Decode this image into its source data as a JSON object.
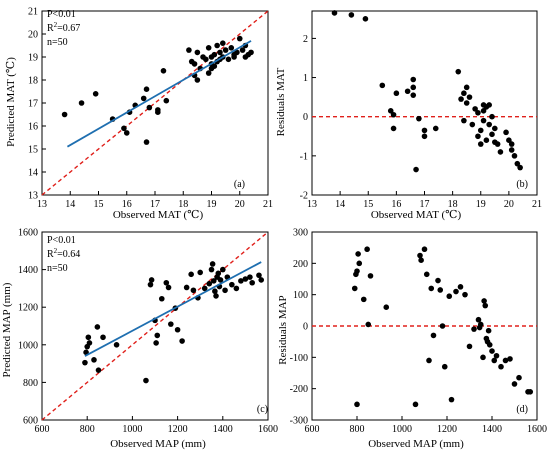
{
  "chart_data": [
    {
      "type": "scatter",
      "panel_label": "(a)",
      "xlabel": "Observed MAT (℃)",
      "ylabel": "Predicted MAT (℃)",
      "xlim": [
        13,
        21
      ],
      "ylim": [
        13,
        21
      ],
      "xticks": [
        "13",
        "14",
        "15",
        "16",
        "17",
        "18",
        "19",
        "20",
        "21"
      ],
      "yticks": [
        "13",
        "14",
        "15",
        "16",
        "17",
        "18",
        "19",
        "20",
        "21"
      ],
      "stats": {
        "p": "P<0.01",
        "r2_prefix": "R",
        "r2_sup": "2",
        "r2_value": "=0.67",
        "n": "n=50"
      },
      "one_to_one_line": {
        "style": "dashed",
        "color": "#e0201b",
        "from": [
          13,
          13
        ],
        "to": [
          21,
          21
        ]
      },
      "fit_line": {
        "color": "#1f6fb0",
        "from": [
          13.9,
          15.1
        ],
        "to": [
          20.4,
          19.7
        ]
      },
      "points": [
        [
          13.8,
          16.5
        ],
        [
          14.4,
          17.0
        ],
        [
          14.9,
          17.4
        ],
        [
          15.5,
          16.3
        ],
        [
          15.9,
          15.9
        ],
        [
          16.0,
          15.7
        ],
        [
          16.1,
          16.6
        ],
        [
          16.3,
          16.9
        ],
        [
          16.6,
          17.2
        ],
        [
          16.7,
          17.6
        ],
        [
          16.7,
          15.3
        ],
        [
          16.8,
          16.8
        ],
        [
          17.1,
          16.7
        ],
        [
          17.1,
          16.6
        ],
        [
          17.4,
          17.1
        ],
        [
          18.2,
          19.3
        ],
        [
          18.3,
          18.8
        ],
        [
          18.4,
          18.2
        ],
        [
          18.4,
          18.7
        ],
        [
          18.5,
          19.2
        ],
        [
          18.6,
          18.5
        ],
        [
          18.7,
          19.0
        ],
        [
          18.8,
          18.9
        ],
        [
          18.9,
          19.4
        ],
        [
          18.9,
          18.3
        ],
        [
          19.0,
          18.7
        ],
        [
          19.0,
          18.5
        ],
        [
          19.1,
          19.1
        ],
        [
          19.1,
          18.6
        ],
        [
          19.2,
          19.5
        ],
        [
          19.2,
          18.8
        ],
        [
          19.3,
          18.9
        ],
        [
          19.3,
          19.2
        ],
        [
          19.4,
          19.6
        ],
        [
          19.4,
          19.0
        ],
        [
          19.5,
          19.3
        ],
        [
          19.6,
          18.9
        ],
        [
          19.7,
          19.4
        ],
        [
          19.8,
          19.1
        ],
        [
          19.9,
          19.2
        ],
        [
          20.0,
          19.8
        ],
        [
          20.1,
          19.3
        ],
        [
          20.2,
          19.5
        ],
        [
          20.3,
          19.1
        ],
        [
          20.4,
          19.2
        ],
        [
          18.5,
          18.0
        ],
        [
          19.0,
          19.0
        ],
        [
          19.8,
          19.0
        ],
        [
          20.2,
          19.0
        ],
        [
          17.3,
          18.4
        ]
      ]
    },
    {
      "type": "scatter",
      "panel_label": "(b)",
      "xlabel": "Observed MAT (℃)",
      "ylabel": "Residuals MAT",
      "xlim": [
        13,
        21
      ],
      "ylim": [
        -2,
        2.7
      ],
      "xticks": [
        "13",
        "14",
        "15",
        "16",
        "17",
        "18",
        "19",
        "20",
        "21"
      ],
      "yticks": [
        "-2",
        "-1",
        "0",
        "1",
        "2"
      ],
      "zero_line": {
        "style": "dashed",
        "color": "#e0201b",
        "y": 0
      },
      "points": [
        [
          13.8,
          2.65
        ],
        [
          14.4,
          2.6
        ],
        [
          14.9,
          2.5
        ],
        [
          15.5,
          0.8
        ],
        [
          15.8,
          0.15
        ],
        [
          15.9,
          0.05
        ],
        [
          15.9,
          -0.3
        ],
        [
          16.0,
          0.6
        ],
        [
          16.4,
          0.65
        ],
        [
          16.6,
          0.95
        ],
        [
          16.6,
          0.75
        ],
        [
          16.6,
          0.55
        ],
        [
          16.7,
          -1.35
        ],
        [
          16.8,
          -0.05
        ],
        [
          17.0,
          -0.35
        ],
        [
          17.0,
          -0.5
        ],
        [
          17.4,
          -0.3
        ],
        [
          18.2,
          1.15
        ],
        [
          18.3,
          0.45
        ],
        [
          18.4,
          0.6
        ],
        [
          18.5,
          0.75
        ],
        [
          18.5,
          0.35
        ],
        [
          18.6,
          0.5
        ],
        [
          18.7,
          -0.2
        ],
        [
          18.8,
          0.2
        ],
        [
          18.9,
          -0.5
        ],
        [
          18.9,
          0.1
        ],
        [
          19.0,
          -0.35
        ],
        [
          19.1,
          0.15
        ],
        [
          19.1,
          0.3
        ],
        [
          19.1,
          -0.1
        ],
        [
          19.2,
          0.25
        ],
        [
          19.2,
          -0.6
        ],
        [
          19.3,
          0.3
        ],
        [
          19.3,
          -0.2
        ],
        [
          19.4,
          0.0
        ],
        [
          19.4,
          -0.45
        ],
        [
          19.5,
          -0.65
        ],
        [
          19.6,
          -0.7
        ],
        [
          19.7,
          -0.9
        ],
        [
          19.9,
          -0.4
        ],
        [
          20.0,
          -0.6
        ],
        [
          20.1,
          -0.7
        ],
        [
          20.2,
          -1.0
        ],
        [
          20.3,
          -1.2
        ],
        [
          20.4,
          -1.3
        ],
        [
          19.0,
          -0.7
        ],
        [
          19.5,
          -0.3
        ],
        [
          18.4,
          -0.1
        ],
        [
          20.1,
          -0.85
        ]
      ]
    },
    {
      "type": "scatter",
      "panel_label": "(c)",
      "xlabel": "Observed MAP (mm)",
      "ylabel": "Predicted MAP (mm)",
      "xlim": [
        600,
        1600
      ],
      "ylim": [
        600,
        1600
      ],
      "xticks": [
        "600",
        "800",
        "1000",
        "1200",
        "1400",
        "1600"
      ],
      "yticks": [
        "600",
        "800",
        "1000",
        "1200",
        "1400",
        "1600"
      ],
      "stats": {
        "p": "P<0.01",
        "r2_prefix": "R",
        "r2_sup": "2",
        "r2_value": "=0.64",
        "n": "n=50"
      },
      "one_to_one_line": {
        "style": "dashed",
        "color": "#e0201b",
        "from": [
          600,
          600
        ],
        "to": [
          1600,
          1600
        ]
      },
      "fit_line": {
        "color": "#1f6fb0",
        "from": [
          790,
          940
        ],
        "to": [
          1570,
          1440
        ]
      },
      "points": [
        [
          790,
          905
        ],
        [
          795,
          960
        ],
        [
          800,
          990
        ],
        [
          805,
          1040
        ],
        [
          810,
          1010
        ],
        [
          830,
          920
        ],
        [
          845,
          1095
        ],
        [
          850,
          865
        ],
        [
          870,
          1040
        ],
        [
          930,
          1000
        ],
        [
          1060,
          810
        ],
        [
          1080,
          1320
        ],
        [
          1085,
          1345
        ],
        [
          1100,
          1130
        ],
        [
          1105,
          1010
        ],
        [
          1110,
          1050
        ],
        [
          1130,
          1245
        ],
        [
          1150,
          1330
        ],
        [
          1160,
          1305
        ],
        [
          1170,
          1110
        ],
        [
          1190,
          1195
        ],
        [
          1200,
          1080
        ],
        [
          1220,
          1020
        ],
        [
          1240,
          1305
        ],
        [
          1260,
          1375
        ],
        [
          1270,
          1290
        ],
        [
          1290,
          1250
        ],
        [
          1300,
          1385
        ],
        [
          1320,
          1300
        ],
        [
          1340,
          1325
        ],
        [
          1350,
          1400
        ],
        [
          1355,
          1430
        ],
        [
          1360,
          1340
        ],
        [
          1365,
          1285
        ],
        [
          1370,
          1260
        ],
        [
          1375,
          1360
        ],
        [
          1380,
          1380
        ],
        [
          1385,
          1310
        ],
        [
          1390,
          1345
        ],
        [
          1400,
          1400
        ],
        [
          1410,
          1290
        ],
        [
          1420,
          1360
        ],
        [
          1440,
          1320
        ],
        [
          1460,
          1300
        ],
        [
          1480,
          1340
        ],
        [
          1500,
          1350
        ],
        [
          1520,
          1360
        ],
        [
          1560,
          1370
        ],
        [
          1570,
          1345
        ],
        [
          1530,
          1330
        ]
      ]
    },
    {
      "type": "scatter",
      "panel_label": "(d)",
      "xlabel": "Observed MAP (mm)",
      "ylabel": "Residuals MAP",
      "xlim": [
        600,
        1600
      ],
      "ylim": [
        -300,
        300
      ],
      "xticks": [
        "600",
        "800",
        "1000",
        "1200",
        "1400",
        "1600"
      ],
      "yticks": [
        "-300",
        "-200",
        "-100",
        "0",
        "100",
        "200",
        "300"
      ],
      "zero_line": {
        "style": "dashed",
        "color": "#e0201b",
        "y": 0
      },
      "points": [
        [
          790,
          120
        ],
        [
          795,
          165
        ],
        [
          800,
          175
        ],
        [
          805,
          230
        ],
        [
          810,
          200
        ],
        [
          830,
          85
        ],
        [
          845,
          245
        ],
        [
          850,
          5
        ],
        [
          860,
          160
        ],
        [
          930,
          60
        ],
        [
          800,
          -250
        ],
        [
          1060,
          -250
        ],
        [
          1080,
          225
        ],
        [
          1085,
          210
        ],
        [
          1100,
          245
        ],
        [
          1110,
          165
        ],
        [
          1120,
          -110
        ],
        [
          1130,
          120
        ],
        [
          1140,
          -30
        ],
        [
          1160,
          145
        ],
        [
          1170,
          115
        ],
        [
          1180,
          0
        ],
        [
          1190,
          -130
        ],
        [
          1210,
          95
        ],
        [
          1220,
          -235
        ],
        [
          1240,
          110
        ],
        [
          1260,
          125
        ],
        [
          1280,
          100
        ],
        [
          1300,
          -65
        ],
        [
          1320,
          -10
        ],
        [
          1340,
          20
        ],
        [
          1350,
          5
        ],
        [
          1360,
          -100
        ],
        [
          1365,
          80
        ],
        [
          1370,
          65
        ],
        [
          1375,
          -40
        ],
        [
          1380,
          -50
        ],
        [
          1385,
          -15
        ],
        [
          1390,
          -60
        ],
        [
          1400,
          -80
        ],
        [
          1410,
          -110
        ],
        [
          1420,
          -95
        ],
        [
          1440,
          -130
        ],
        [
          1460,
          -110
        ],
        [
          1480,
          -105
        ],
        [
          1500,
          -185
        ],
        [
          1520,
          -165
        ],
        [
          1560,
          -210
        ],
        [
          1570,
          -210
        ],
        [
          1345,
          -5
        ]
      ]
    }
  ]
}
